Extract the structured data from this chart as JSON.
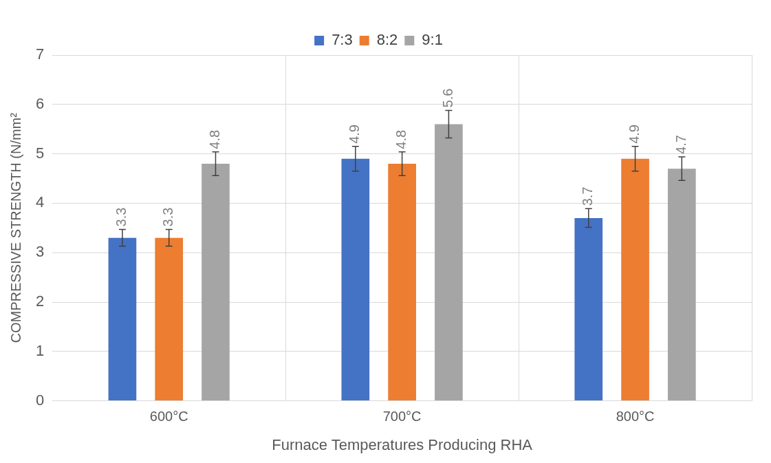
{
  "chart_data": {
    "type": "bar",
    "xlabel": "Furnace Temperatures Producing RHA",
    "ylabel": "COMPRESSIVE STRENGTH (N/mm²",
    "categories": [
      "600°C",
      "700°C",
      "800°C"
    ],
    "series": [
      {
        "name": "7:3",
        "color": "#4472c4",
        "values": [
          3.3,
          4.9,
          3.7
        ],
        "errors": [
          0.17,
          0.25,
          0.19
        ]
      },
      {
        "name": "8:2",
        "color": "#ed7d31",
        "values": [
          3.3,
          4.8,
          4.9
        ],
        "errors": [
          0.17,
          0.24,
          0.25
        ]
      },
      {
        "name": "9:1",
        "color": "#a5a5a5",
        "values": [
          4.8,
          5.6,
          4.7
        ],
        "errors": [
          0.24,
          0.28,
          0.24
        ]
      }
    ],
    "ylim": [
      0,
      7
    ],
    "yticks": [
      0,
      1,
      2,
      3,
      4,
      5,
      6,
      7
    ],
    "grid": true,
    "legend": "top",
    "data_labels": true
  }
}
